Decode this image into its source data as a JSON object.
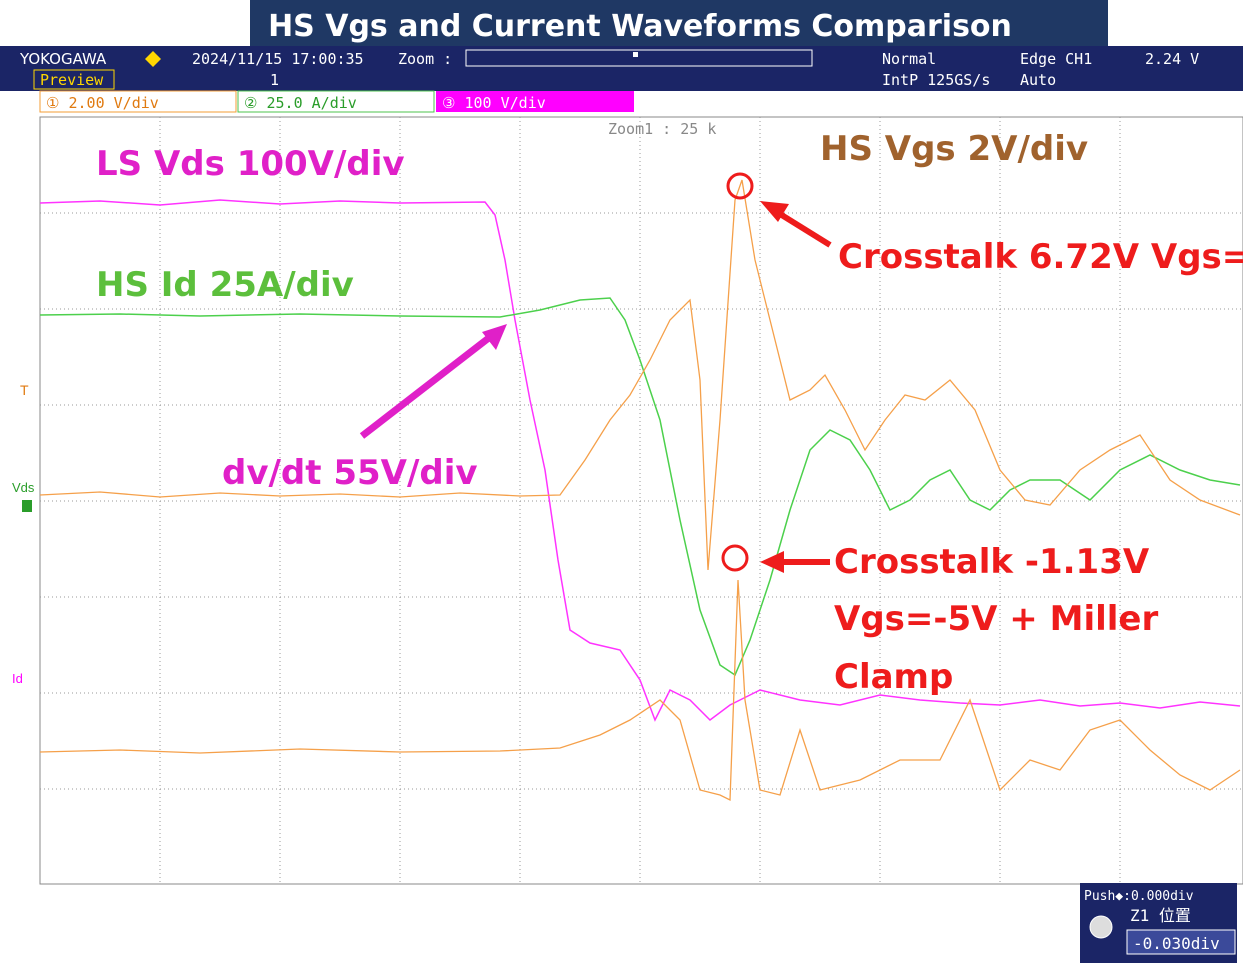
{
  "title": "HS Vgs and Current Waveforms Comparison",
  "header": {
    "brand": "YOKOGAWA",
    "timestamp": "2024/11/15 17:00:35",
    "zoom": "Zoom :",
    "mode": "Normal",
    "trigger": "Edge CH1",
    "trigger_level": "2.24 V",
    "preview": "Preview",
    "marker": "1",
    "sample_rate": "IntP 125GS/s",
    "trigger_mode": "Auto"
  },
  "channels": [
    "① 2.00 V/div",
    "② 25.0 A/div",
    "③ 100 V/div"
  ],
  "screen": {
    "zoom_label": "Zoom1 : 25 k",
    "side_labels": [
      "Vds",
      "Id"
    ]
  },
  "annotations": {
    "ls_vds": "LS Vds   100V/div",
    "hs_id": "HS Id   25A/div",
    "hs_vgs": "HS Vgs   2V/div",
    "crosstalk_high": "Crosstalk 6.72V  Vgs=",
    "dvdt": "dv/dt 55V/div",
    "crosstalk_low": "Crosstalk -1.13V",
    "clamp_line1": "Vgs=-5V + Miller",
    "clamp_line2": "Clamp"
  },
  "control": {
    "push": "Push◆:0.000div",
    "position": "Z1 位置",
    "value": "-0.030div"
  }
}
